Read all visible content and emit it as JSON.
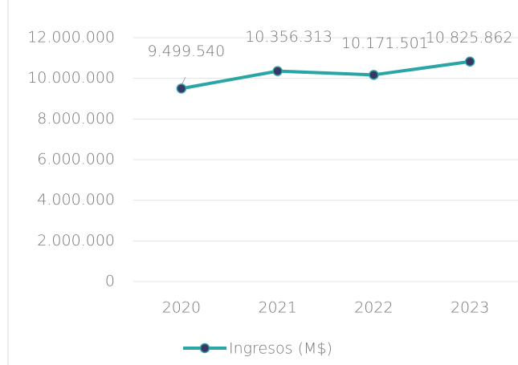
{
  "chart_data": {
    "type": "line",
    "categories": [
      "2020",
      "2021",
      "2022",
      "2023"
    ],
    "series": [
      {
        "name": "Ingresos (M$)",
        "color": "#2aa5a5",
        "marker_color": "#3d3466",
        "values": [
          9499540,
          10356313,
          10171501,
          10825862
        ],
        "value_labels": [
          "9.499.540",
          "10.356.313",
          "10.171.501",
          "10.825.862"
        ]
      }
    ],
    "ylim": [
      0,
      12000000
    ],
    "yticks": [
      0,
      {
        "value": 2000000,
        "label": "2.000.000"
      },
      {
        "value": 4000000,
        "label": "4.000.000"
      },
      {
        "value": 6000000,
        "label": "6.000.000"
      },
      {
        "value": 8000000,
        "label": "8.000.000"
      },
      {
        "value": 10000000,
        "label": "10.000.000"
      },
      {
        "value": 12000000,
        "label": "12.000.000"
      }
    ],
    "grid": true,
    "legend": "bottom"
  }
}
